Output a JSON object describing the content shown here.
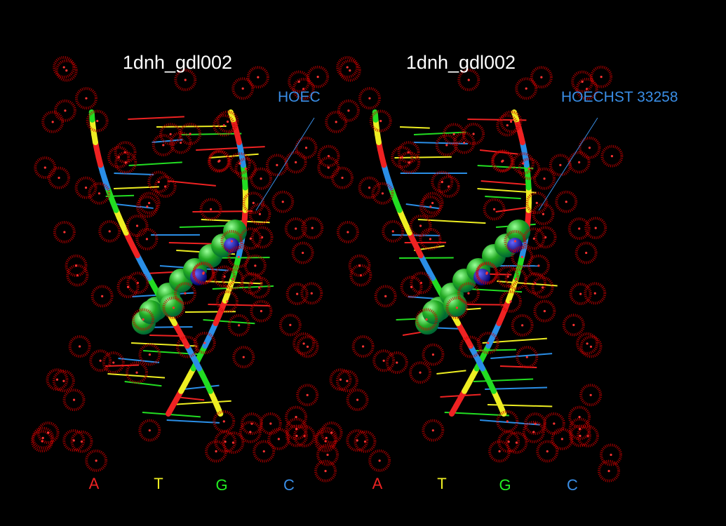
{
  "panels": [
    {
      "title": "1dnh_gdl002",
      "ligand_label": "HOEC",
      "legend": [
        "A",
        "T",
        "G",
        "C"
      ]
    },
    {
      "title": "1dnh_gdl002",
      "ligand_label": "HOECHST 33258",
      "legend": [
        "A",
        "T",
        "G",
        "C"
      ]
    }
  ]
}
